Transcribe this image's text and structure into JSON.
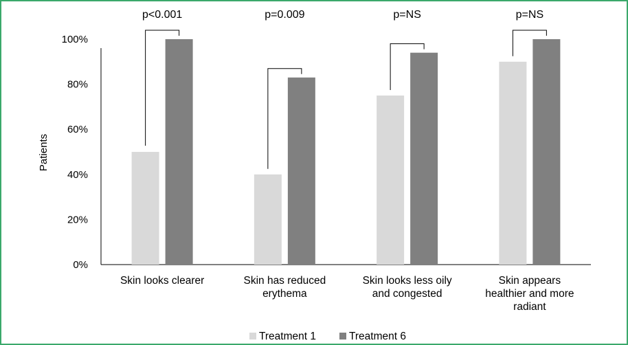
{
  "chart_data": {
    "type": "bar",
    "title": "",
    "xlabel": "",
    "ylabel": "Patients",
    "ylim": [
      0,
      100
    ],
    "yticks": [
      "0%",
      "20%",
      "40%",
      "60%",
      "80%",
      "100%"
    ],
    "categories": [
      [
        "Skin looks clearer"
      ],
      [
        "Skin has reduced",
        "erythema"
      ],
      [
        "Skin looks less oily",
        "and congested"
      ],
      [
        "Skin appears",
        "healthier and more",
        "radiant"
      ]
    ],
    "series": [
      {
        "name": "Treatment 1",
        "color": "#d9d9d9",
        "values": [
          50,
          40,
          75,
          90
        ]
      },
      {
        "name": "Treatment 6",
        "color": "#808080",
        "values": [
          100,
          83,
          94,
          100
        ]
      }
    ],
    "annotations": [
      "p<0.001",
      "p=0.009",
      "p=NS",
      "p=NS"
    ],
    "grid": false,
    "legend": "bottom"
  }
}
